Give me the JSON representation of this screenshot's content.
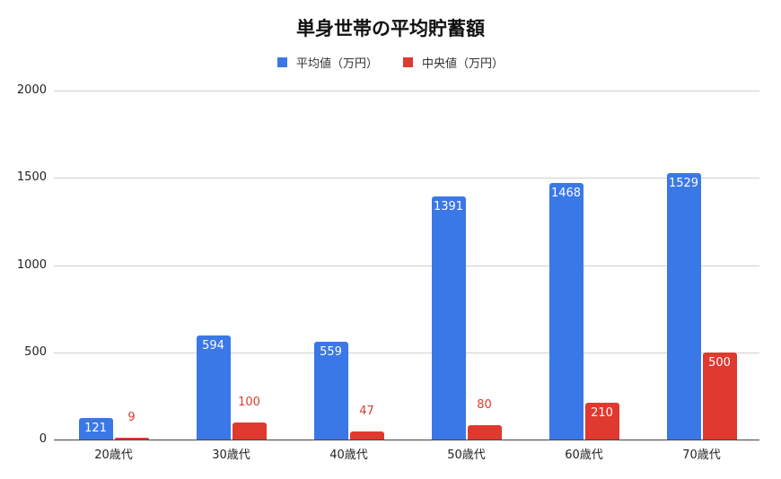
{
  "chart_data": {
    "type": "bar",
    "title": "単身世帯の平均貯蓄額",
    "xlabel": "",
    "ylabel": "",
    "categories": [
      "20歳代",
      "30歳代",
      "40歳代",
      "50歳代",
      "60歳代",
      "70歳代"
    ],
    "series": [
      {
        "name": "平均値（万円）",
        "color": "#3b78e7",
        "values": [
          121,
          594,
          559,
          1391,
          1468,
          1529
        ]
      },
      {
        "name": "中央値（万円）",
        "color": "#e0392f",
        "values": [
          9,
          100,
          47,
          80,
          210,
          500
        ]
      }
    ],
    "ylim": [
      0,
      2000
    ],
    "yticks": [
      "0",
      "500",
      "1000",
      "1500",
      "2000"
    ],
    "grid": true,
    "legend_position": "top",
    "data_labels": true
  }
}
